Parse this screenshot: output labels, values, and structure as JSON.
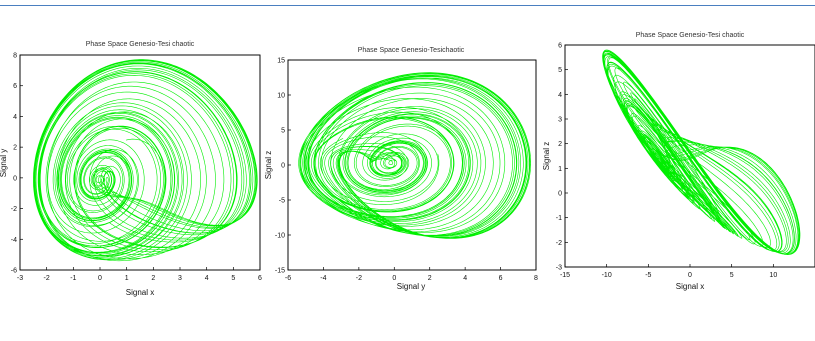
{
  "colors": {
    "trajectory": "#00ee00",
    "rule": "#4a7fc0"
  },
  "chart_data": [
    {
      "type": "line",
      "title": "Phase Space Genesio-Tesi chaotic",
      "xlabel": "Signal x",
      "ylabel": "Signal y",
      "xlim": [
        -3,
        6
      ],
      "ylim": [
        -6,
        8
      ],
      "xticks": [
        -3,
        -2,
        -1,
        0,
        1,
        2,
        3,
        4,
        5,
        6
      ],
      "yticks": [
        -6,
        -4,
        -2,
        0,
        2,
        4,
        6,
        8
      ],
      "grid": false,
      "series": [
        {
          "color": "#00ee00",
          "x": [],
          "y": []
        }
      ]
    },
    {
      "type": "line",
      "title": "Phase Space Genesio-Tesichaotic",
      "xlabel": "Signal y",
      "ylabel": "Signal z",
      "xlim": [
        -6,
        8
      ],
      "ylim": [
        -15,
        15
      ],
      "xticks": [
        -6,
        -4,
        -2,
        0,
        2,
        4,
        6,
        8
      ],
      "yticks": [
        -15,
        -10,
        -5,
        0,
        5,
        10,
        15
      ],
      "grid": false,
      "series": [
        {
          "color": "#00ee00",
          "x": [],
          "y": []
        }
      ]
    },
    {
      "type": "line",
      "title": "Phase Space Genesio-Tesi chaotic",
      "xlabel": "Signal x",
      "ylabel": "Signal z",
      "xlim": [
        -15,
        15
      ],
      "ylim": [
        -3,
        6
      ],
      "xticks": [
        -15,
        -10,
        -5,
        0,
        5,
        10
      ],
      "yticks": [
        -3,
        -2,
        -1,
        0,
        1,
        2,
        3,
        4,
        5,
        6
      ],
      "grid": false,
      "series": [
        {
          "color": "#00ee00",
          "x": [],
          "y": []
        }
      ]
    }
  ]
}
